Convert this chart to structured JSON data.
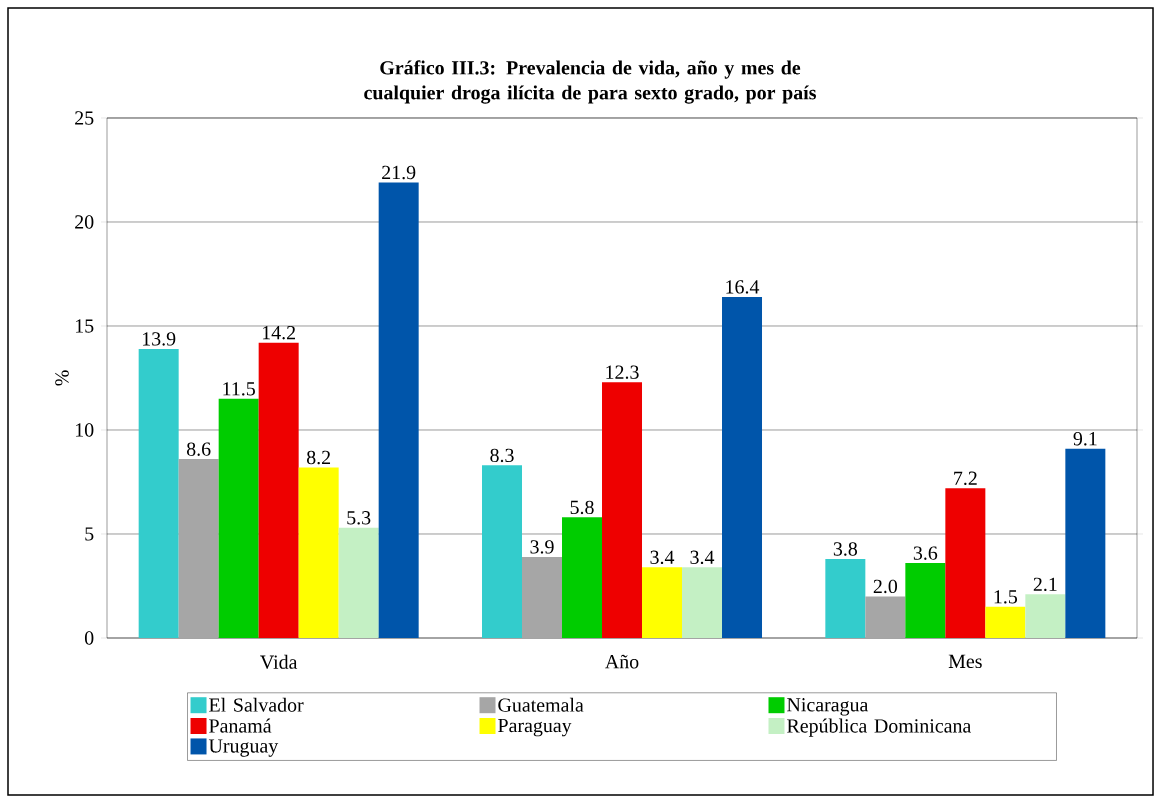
{
  "chart_data": {
    "type": "bar",
    "title": "Gráfico III.3: Prevalencia de vida, año y mes de cualquier droga ilícita de para sexto grado, por país",
    "ylabel": "%",
    "categories": [
      "Vida",
      "Año",
      "Mes"
    ],
    "series": [
      {
        "name": "El Salvador",
        "color": "#33cccc",
        "values": [
          13.9,
          8.3,
          3.8
        ],
        "value_labels": [
          "13.9",
          "8.3",
          "3.8"
        ]
      },
      {
        "name": "Guatemala",
        "color": "#a6a6a6",
        "values": [
          8.6,
          3.9,
          2.0
        ],
        "value_labels": [
          "8.6",
          "3.9",
          "2.0"
        ]
      },
      {
        "name": "Nicaragua",
        "color": "#00cc00",
        "values": [
          11.5,
          5.8,
          3.6
        ],
        "value_labels": [
          "11.5",
          "5.8",
          "3.6"
        ]
      },
      {
        "name": "Panamá",
        "color": "#ee0000",
        "values": [
          14.2,
          12.3,
          7.2
        ],
        "value_labels": [
          "14.2",
          "12.3",
          "7.2"
        ]
      },
      {
        "name": "Paraguay",
        "color": "#ffff00",
        "values": [
          8.2,
          3.4,
          1.5
        ],
        "value_labels": [
          "8.2",
          "3.4",
          "1.5"
        ]
      },
      {
        "name": "República Dominicana",
        "color": "#c4f0c4",
        "values": [
          5.3,
          3.4,
          2.1
        ],
        "value_labels": [
          "5.3",
          "3.4",
          "2.1"
        ]
      },
      {
        "name": "Uruguay",
        "color": "#0055aa",
        "values": [
          21.9,
          16.4,
          9.1
        ],
        "value_labels": [
          "21.9",
          "16.4",
          "9.1"
        ]
      }
    ],
    "ylim": [
      0,
      25
    ],
    "yticks": [
      0,
      5,
      10,
      15,
      20,
      25
    ],
    "grid": "y",
    "legend": "bottom"
  }
}
